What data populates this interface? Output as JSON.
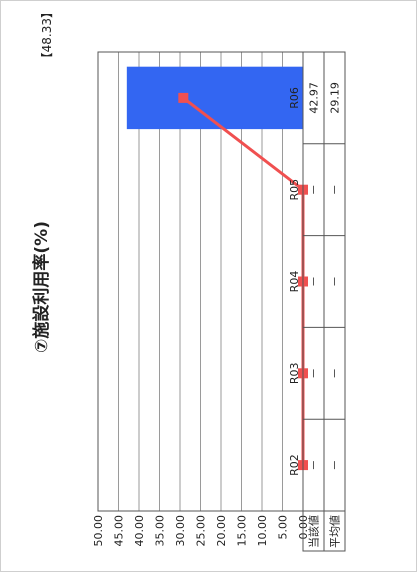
{
  "chart_data": {
    "type": "bar",
    "title": "⑦施設利用率(%)",
    "categories": [
      "R02",
      "R03",
      "R04",
      "R05",
      "R06"
    ],
    "series": [
      {
        "name": "当該値",
        "kind": "bar",
        "values": [
          null,
          null,
          null,
          null,
          42.97
        ]
      },
      {
        "name": "平均値",
        "kind": "line",
        "values": [
          0,
          0,
          0,
          0,
          29.19
        ]
      }
    ],
    "table": {
      "row_labels": [
        "当該値",
        "平均値"
      ],
      "rows": [
        [
          "－",
          "－",
          "－",
          "－",
          "42.97"
        ],
        [
          "－",
          "－",
          "－",
          "－",
          "29.19"
        ]
      ]
    },
    "annotation": "【48.33】",
    "yticks": [
      "0.00",
      "5.00",
      "10.00",
      "15.00",
      "20.00",
      "25.00",
      "30.00",
      "35.00",
      "40.00",
      "45.00",
      "50.00"
    ],
    "ylim": [
      0,
      50
    ],
    "grid": true,
    "orientation": "rotated-90",
    "colors": {
      "bar": "#3366f2",
      "line": "#f05050",
      "grid": "#9a9a9a",
      "frame": "#555555"
    }
  }
}
